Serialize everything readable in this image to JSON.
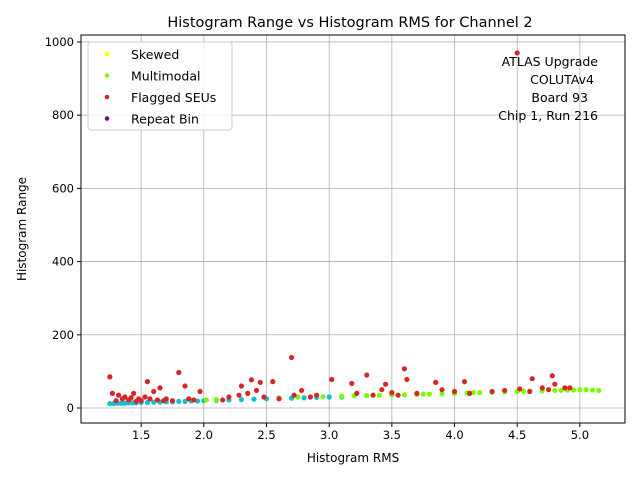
{
  "chart_data": {
    "type": "scatter",
    "title": "Histogram Range vs Histogram RMS for Channel 2",
    "xlabel": "Histogram RMS",
    "ylabel": "Histogram Range",
    "xlim": [
      1.02,
      5.36
    ],
    "ylim": [
      -41,
      1019
    ],
    "xticks": [
      1.5,
      2.0,
      2.5,
      3.0,
      3.5,
      4.0,
      4.5,
      5.0
    ],
    "xtick_labels": [
      "1.5",
      "2.0",
      "2.5",
      "3.0",
      "3.5",
      "4.0",
      "4.5",
      "5.0"
    ],
    "yticks": [
      0,
      200,
      400,
      600,
      800,
      1000
    ],
    "ytick_labels": [
      "0",
      "200",
      "400",
      "600",
      "800",
      "1000"
    ],
    "grid": true,
    "legend_placement": "top-left",
    "annotation": [
      "ATLAS Upgrade",
      "COLUTAv4",
      "Board 93",
      "Chip 1, Run 216"
    ],
    "series": [
      {
        "name": "",
        "color": "#17becf",
        "in_legend": false,
        "x": [
          1.25,
          1.28,
          1.31,
          1.34,
          1.37,
          1.4,
          1.43,
          1.46,
          1.5,
          1.55,
          1.6,
          1.65,
          1.7,
          1.75,
          1.8,
          1.85,
          1.9,
          1.95,
          2.0,
          2.1,
          2.2,
          2.3,
          2.4,
          2.5,
          2.6,
          2.7,
          2.8,
          2.9,
          3.0,
          3.1
        ],
        "y": [
          12,
          12,
          13,
          13,
          13,
          14,
          14,
          14,
          15,
          15,
          16,
          16,
          17,
          17,
          18,
          18,
          19,
          19,
          20,
          21,
          22,
          23,
          24,
          25,
          26,
          27,
          28,
          29,
          30,
          30
        ]
      },
      {
        "name": "Skewed",
        "color": "#ffff00",
        "in_legend": true,
        "x": [],
        "y": []
      },
      {
        "name": "Multimodal",
        "color": "#7cfc00",
        "in_legend": true,
        "x": [
          2.02,
          2.1,
          2.6,
          2.75,
          2.95,
          3.1,
          3.2,
          3.3,
          3.4,
          3.5,
          3.6,
          3.7,
          3.75,
          3.8,
          3.9,
          4.0,
          4.1,
          4.15,
          4.2,
          4.3,
          4.4,
          4.5,
          4.55,
          4.6,
          4.7,
          4.8,
          4.85,
          4.9,
          4.95,
          5.0,
          5.05,
          5.1,
          5.15
        ],
        "y": [
          22,
          23,
          28,
          30,
          31,
          32,
          33,
          34,
          35,
          36,
          36,
          37,
          38,
          38,
          39,
          40,
          41,
          42,
          42,
          43,
          44,
          45,
          46,
          46,
          47,
          48,
          48,
          49,
          49,
          50,
          50,
          49,
          48
        ]
      },
      {
        "name": "Flagged SEUs",
        "color": "#d62728",
        "in_legend": true,
        "x": [
          1.25,
          1.27,
          1.3,
          1.32,
          1.35,
          1.37,
          1.4,
          1.42,
          1.44,
          1.46,
          1.48,
          1.5,
          1.53,
          1.55,
          1.57,
          1.6,
          1.63,
          1.65,
          1.68,
          1.7,
          1.75,
          1.8,
          1.85,
          1.88,
          1.92,
          1.97,
          2.15,
          2.2,
          2.28,
          2.3,
          2.35,
          2.38,
          2.42,
          2.45,
          2.48,
          2.55,
          2.6,
          2.7,
          2.72,
          2.78,
          2.85,
          2.9,
          3.02,
          3.18,
          3.22,
          3.3,
          3.35,
          3.42,
          3.45,
          3.5,
          3.55,
          3.6,
          3.62,
          3.7,
          3.85,
          3.9,
          4.0,
          4.08,
          4.12,
          4.3,
          4.4,
          4.5,
          4.52,
          4.6,
          4.62,
          4.7,
          4.75,
          4.78,
          4.8,
          4.88,
          4.92
        ],
        "y": [
          85,
          40,
          20,
          35,
          25,
          30,
          22,
          28,
          40,
          18,
          25,
          20,
          30,
          72,
          25,
          45,
          22,
          55,
          20,
          25,
          20,
          97,
          60,
          25,
          22,
          45,
          22,
          30,
          35,
          60,
          40,
          77,
          48,
          70,
          30,
          72,
          25,
          138,
          35,
          48,
          30,
          35,
          78,
          67,
          40,
          90,
          35,
          50,
          65,
          42,
          35,
          107,
          78,
          40,
          70,
          50,
          45,
          72,
          40,
          45,
          48,
          970,
          52,
          45,
          80,
          55,
          50,
          88,
          65,
          55,
          55
        ]
      },
      {
        "name": "Repeat Bin",
        "color": "#800080",
        "in_legend": true,
        "x": [],
        "y": []
      }
    ]
  }
}
